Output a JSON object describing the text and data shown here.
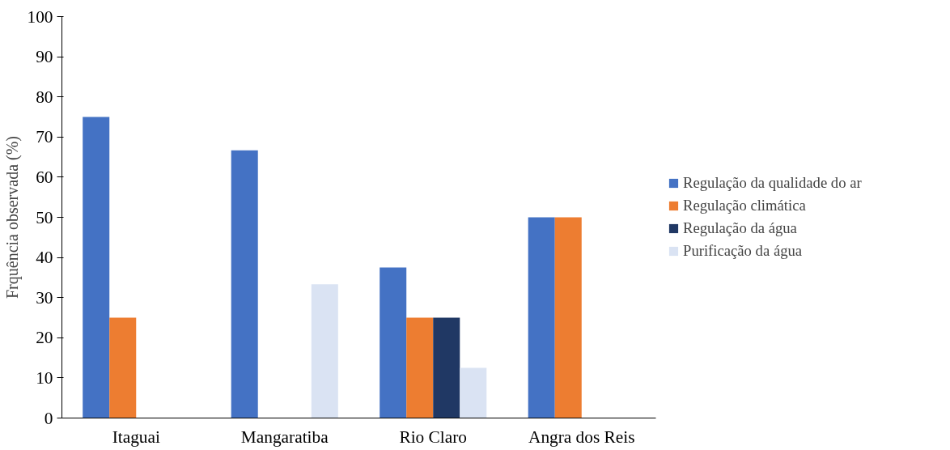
{
  "chart_data": {
    "type": "bar",
    "ylabel": "Frquência observada (%)",
    "categories": [
      "Itaguai",
      "Mangaratiba",
      "Rio Claro",
      "Angra dos Reis"
    ],
    "series": [
      {
        "name": "Regulação da qualidade do ar",
        "color": "#4472c4",
        "values": [
          75,
          66.7,
          37.5,
          50
        ]
      },
      {
        "name": "Regulação climática",
        "color": "#ed7d31",
        "values": [
          25,
          null,
          25,
          50
        ]
      },
      {
        "name": "Regulação da água",
        "color": "#203864",
        "values": [
          null,
          null,
          25,
          null
        ]
      },
      {
        "name": "Purificação da água",
        "color": "#dae3f3",
        "values": [
          null,
          33.3,
          12.5,
          null
        ]
      }
    ],
    "ylim": [
      0,
      100
    ],
    "yticks": [
      0,
      10,
      20,
      30,
      40,
      50,
      60,
      70,
      80,
      90,
      100
    ],
    "grid": false,
    "legend": "right"
  }
}
